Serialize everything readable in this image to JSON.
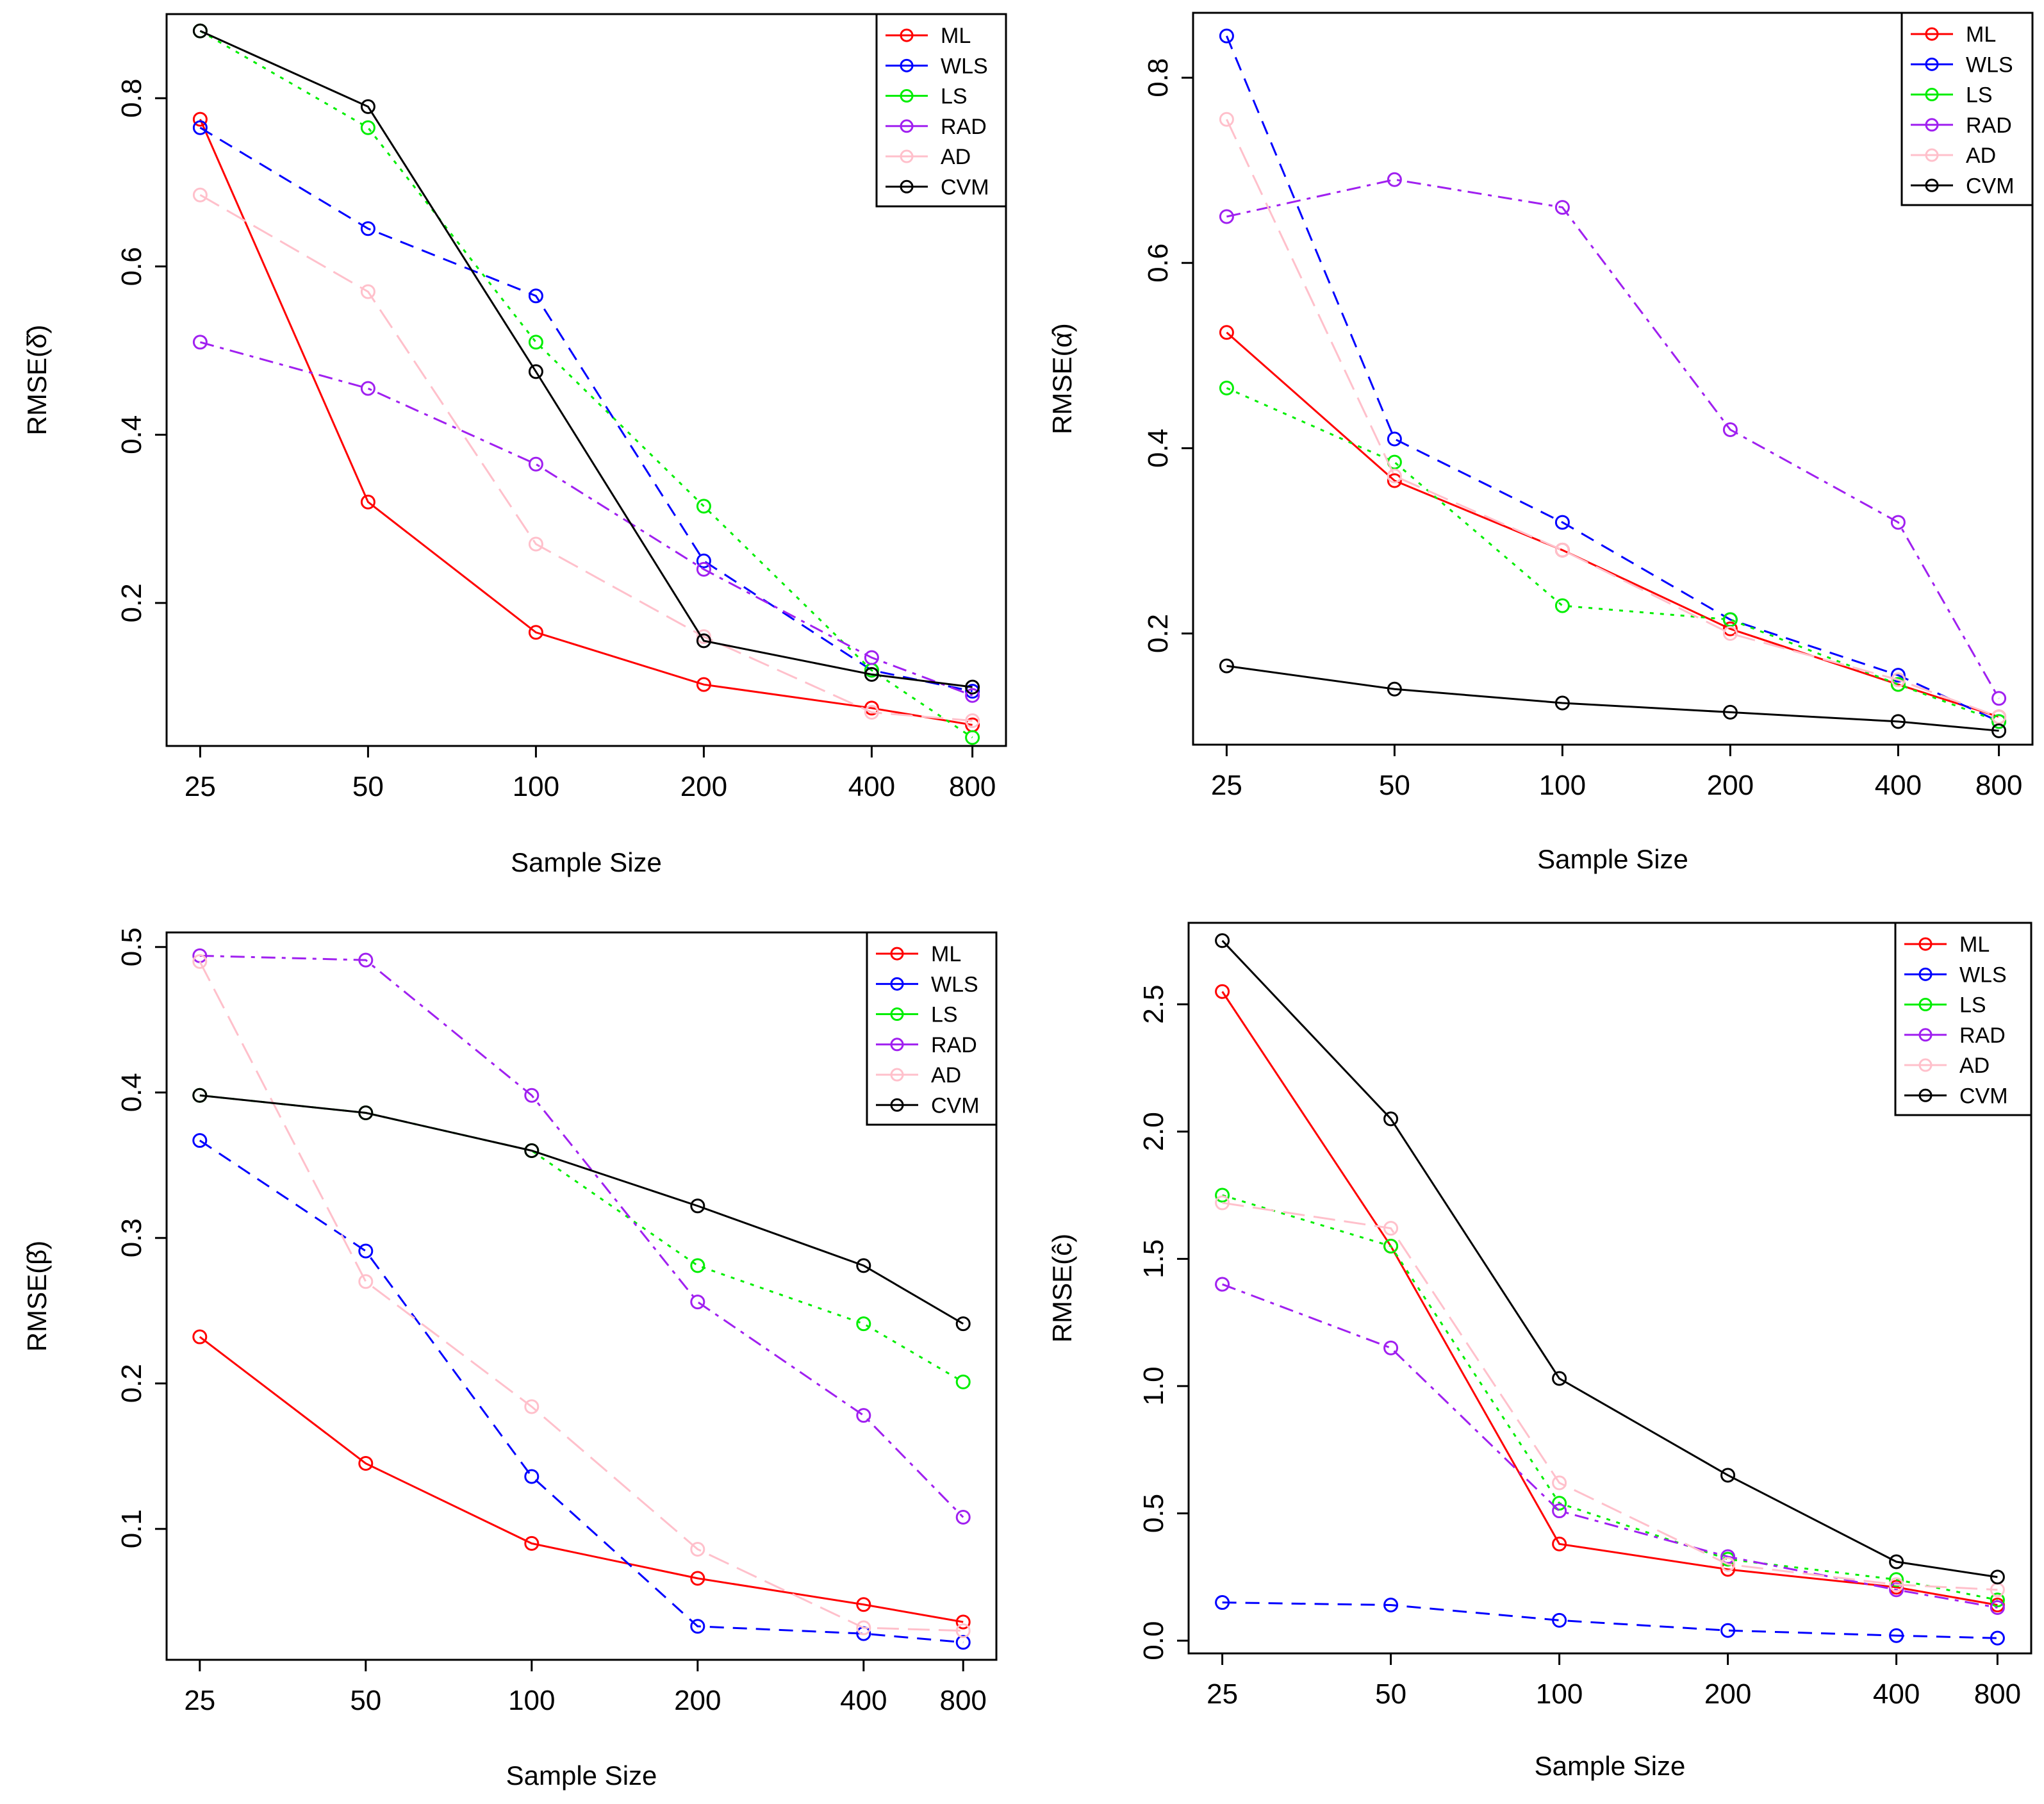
{
  "figure": {
    "description": "RMSE of estimators vs sample size"
  },
  "chart_data": [
    {
      "type": "line",
      "id": "delta",
      "title": "",
      "xlabel": "Sample Size",
      "ylabel": "RMSE(δ̂)",
      "categories": [
        "25",
        "50",
        "100",
        "200",
        "400",
        "800"
      ],
      "yticks": [
        0.2,
        0.4,
        0.6,
        0.8
      ],
      "ylim": [
        0.03,
        0.9
      ],
      "legend": "top-right",
      "series": [
        {
          "name": "ML",
          "color": "#ff0000",
          "dash": "solid",
          "values": [
            0.775,
            0.32,
            0.165,
            0.103,
            0.075,
            0.055
          ]
        },
        {
          "name": "WLS",
          "color": "#0000ff",
          "dash": "dashed",
          "values": [
            0.765,
            0.645,
            0.565,
            0.25,
            0.12,
            0.095
          ]
        },
        {
          "name": "LS",
          "color": "#00ee00",
          "dash": "dotted",
          "values": [
            0.88,
            0.765,
            0.51,
            0.315,
            0.12,
            0.04
          ]
        },
        {
          "name": "RAD",
          "color": "#a020f0",
          "dash": "dashdot",
          "values": [
            0.51,
            0.455,
            0.365,
            0.24,
            0.135,
            0.09
          ]
        },
        {
          "name": "AD",
          "color": "#ffc0cb",
          "dash": "longdash",
          "values": [
            0.685,
            0.57,
            0.27,
            0.16,
            0.07,
            0.06
          ]
        },
        {
          "name": "CVM",
          "color": "#000000",
          "dash": "solid",
          "values": [
            0.88,
            0.79,
            0.475,
            0.155,
            0.115,
            0.1
          ]
        }
      ]
    },
    {
      "type": "line",
      "id": "alpha",
      "title": "",
      "xlabel": "Sample Size",
      "ylabel": "RMSE(α̂)",
      "categories": [
        "25",
        "50",
        "100",
        "200",
        "400",
        "800"
      ],
      "yticks": [
        0.2,
        0.4,
        0.6,
        0.8
      ],
      "ylim": [
        0.08,
        0.87
      ],
      "legend": "top-right",
      "series": [
        {
          "name": "ML",
          "color": "#ff0000",
          "dash": "solid",
          "values": [
            0.525,
            0.365,
            0.29,
            0.205,
            0.145,
            0.11
          ]
        },
        {
          "name": "WLS",
          "color": "#0000ff",
          "dash": "dashed",
          "values": [
            0.845,
            0.41,
            0.32,
            0.215,
            0.155,
            0.105
          ]
        },
        {
          "name": "LS",
          "color": "#00ee00",
          "dash": "dotted",
          "values": [
            0.465,
            0.385,
            0.23,
            0.215,
            0.145,
            0.105
          ]
        },
        {
          "name": "RAD",
          "color": "#a020f0",
          "dash": "dashdot",
          "values": [
            0.65,
            0.69,
            0.66,
            0.42,
            0.32,
            0.13
          ]
        },
        {
          "name": "AD",
          "color": "#ffc0cb",
          "dash": "longdash",
          "values": [
            0.755,
            0.37,
            0.29,
            0.2,
            0.15,
            0.11
          ]
        },
        {
          "name": "CVM",
          "color": "#000000",
          "dash": "solid",
          "values": [
            0.165,
            0.14,
            0.125,
            0.115,
            0.105,
            0.095
          ]
        }
      ]
    },
    {
      "type": "line",
      "id": "beta",
      "title": "",
      "xlabel": "Sample Size",
      "ylabel": "RMSE(β̂)",
      "categories": [
        "25",
        "50",
        "100",
        "200",
        "400",
        "800"
      ],
      "yticks": [
        0.1,
        0.2,
        0.3,
        0.4,
        0.5
      ],
      "ylim": [
        0.01,
        0.51
      ],
      "legend": "top-right",
      "series": [
        {
          "name": "ML",
          "color": "#ff0000",
          "dash": "solid",
          "values": [
            0.232,
            0.145,
            0.09,
            0.066,
            0.048,
            0.036
          ]
        },
        {
          "name": "WLS",
          "color": "#0000ff",
          "dash": "dashed",
          "values": [
            0.367,
            0.291,
            0.136,
            0.033,
            0.028,
            0.022
          ]
        },
        {
          "name": "LS",
          "color": "#00ee00",
          "dash": "dotted",
          "values": [
            0.398,
            0.386,
            0.36,
            0.281,
            0.241,
            0.201
          ]
        },
        {
          "name": "RAD",
          "color": "#a020f0",
          "dash": "dashdot",
          "values": [
            0.494,
            0.491,
            0.398,
            0.256,
            0.178,
            0.108
          ]
        },
        {
          "name": "AD",
          "color": "#ffc0cb",
          "dash": "longdash",
          "values": [
            0.49,
            0.27,
            0.184,
            0.086,
            0.032,
            0.03
          ]
        },
        {
          "name": "CVM",
          "color": "#000000",
          "dash": "solid",
          "values": [
            0.398,
            0.386,
            0.36,
            0.322,
            0.281,
            0.241
          ]
        }
      ]
    },
    {
      "type": "line",
      "id": "c",
      "title": "",
      "xlabel": "Sample Size",
      "ylabel": "RMSE(ĉ)",
      "categories": [
        "25",
        "50",
        "100",
        "200",
        "400",
        "800"
      ],
      "yticks": [
        0.0,
        0.5,
        1.0,
        1.5,
        2.0,
        2.5
      ],
      "ylim": [
        -0.05,
        2.82
      ],
      "legend": "top-right",
      "series": [
        {
          "name": "ML",
          "color": "#ff0000",
          "dash": "solid",
          "values": [
            2.55,
            1.55,
            0.38,
            0.28,
            0.21,
            0.14
          ]
        },
        {
          "name": "WLS",
          "color": "#0000ff",
          "dash": "dashed",
          "values": [
            0.15,
            0.14,
            0.08,
            0.04,
            0.02,
            0.01
          ]
        },
        {
          "name": "LS",
          "color": "#00ee00",
          "dash": "dotted",
          "values": [
            1.75,
            1.55,
            0.54,
            0.32,
            0.24,
            0.16
          ]
        },
        {
          "name": "RAD",
          "color": "#a020f0",
          "dash": "dashdot",
          "values": [
            1.4,
            1.15,
            0.51,
            0.33,
            0.2,
            0.13
          ]
        },
        {
          "name": "AD",
          "color": "#ffc0cb",
          "dash": "longdash",
          "values": [
            1.72,
            1.62,
            0.62,
            0.3,
            0.22,
            0.2
          ]
        },
        {
          "name": "CVM",
          "color": "#000000",
          "dash": "solid",
          "values": [
            2.75,
            2.05,
            1.03,
            0.65,
            0.31,
            0.25
          ]
        }
      ]
    }
  ]
}
